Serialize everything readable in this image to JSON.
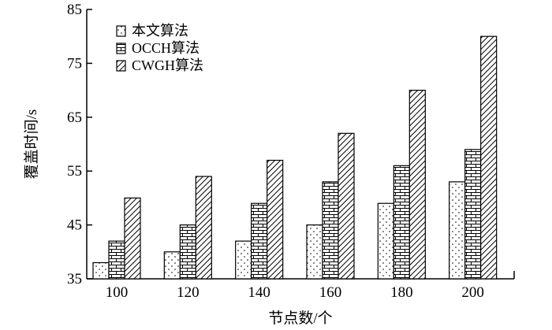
{
  "chart_data": {
    "type": "bar",
    "categories": [
      "100",
      "120",
      "140",
      "160",
      "180",
      "200"
    ],
    "series": [
      {
        "name": "本文算法",
        "values": [
          38,
          40,
          42,
          45,
          49,
          53
        ],
        "pattern": "dots"
      },
      {
        "name": "OCCH算法",
        "values": [
          42,
          45,
          49,
          53,
          56,
          59
        ],
        "pattern": "bricks"
      },
      {
        "name": "CWGH算法",
        "values": [
          50,
          54,
          57,
          62,
          70,
          80
        ],
        "pattern": "diagonal"
      }
    ],
    "xlabel": "节点数/个",
    "ylabel": "覆盖时间/s",
    "ylim": [
      35,
      85
    ],
    "yticks": [
      35,
      45,
      55,
      65,
      75,
      85
    ],
    "grid": false,
    "legend_position": "top-left"
  }
}
